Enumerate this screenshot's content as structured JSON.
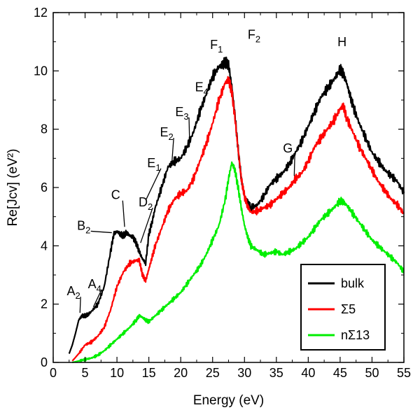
{
  "chart_data": {
    "type": "line",
    "xlabel": "Energy (eV)",
    "ylabel": "Re[Jcv] (eV²)",
    "xlim": [
      0,
      55
    ],
    "ylim": [
      0,
      12
    ],
    "x_ticks": [
      "0",
      "5",
      "10",
      "15",
      "20",
      "25",
      "30",
      "35",
      "40",
      "45",
      "50",
      "55"
    ],
    "y_ticks": [
      "0",
      "2",
      "4",
      "6",
      "8",
      "10",
      "12"
    ],
    "grid": false,
    "legend_position": "bottom-right",
    "series": [
      {
        "name": "bulk",
        "color": "#000000",
        "x": [
          2.5,
          3,
          3.5,
          4,
          4.5,
          5,
          5.5,
          6,
          7,
          8,
          9,
          9.5,
          10,
          10.5,
          11,
          11.5,
          12,
          12.5,
          13,
          13.5,
          14,
          14.5,
          15,
          15.5,
          16,
          17,
          18,
          19,
          20,
          21,
          22,
          23,
          24,
          25,
          26,
          26.5,
          27,
          27.5,
          28,
          28.5,
          29,
          29.5,
          30,
          30.5,
          31,
          32,
          33,
          34,
          35,
          36,
          37,
          38,
          39,
          40,
          41,
          42,
          43,
          44,
          45,
          45.5,
          46,
          46.5,
          47,
          48,
          49,
          50,
          51,
          52,
          53,
          54,
          55
        ],
        "y": [
          0.3,
          0.6,
          1.0,
          1.45,
          1.6,
          1.6,
          1.65,
          1.75,
          2.0,
          2.6,
          3.8,
          4.4,
          4.5,
          4.4,
          4.35,
          4.45,
          4.35,
          4.3,
          4.1,
          3.8,
          3.55,
          3.4,
          4.4,
          4.8,
          5.3,
          6.0,
          6.7,
          6.9,
          7.0,
          7.4,
          7.9,
          8.6,
          9.2,
          9.8,
          10.15,
          10.2,
          10.3,
          10.2,
          9.5,
          8.5,
          7.3,
          6.3,
          5.7,
          5.5,
          5.3,
          5.4,
          5.7,
          6.1,
          6.3,
          6.5,
          6.8,
          7.2,
          7.6,
          8.1,
          8.6,
          9.1,
          9.4,
          9.7,
          10.05,
          9.9,
          9.6,
          9.2,
          8.8,
          8.2,
          7.7,
          7.2,
          6.9,
          6.6,
          6.4,
          6.2,
          5.8
        ]
      },
      {
        "name": "Σ5",
        "color": "#ff0000",
        "x": [
          3,
          4,
          5,
          6,
          7,
          8,
          9,
          10,
          11,
          12,
          13,
          13.5,
          14,
          14.5,
          15,
          15.5,
          16,
          17,
          18,
          19,
          20,
          21,
          22,
          23,
          24,
          25,
          26,
          27,
          27.5,
          28,
          28.5,
          29,
          29.5,
          30,
          30.5,
          31,
          32,
          33,
          34,
          35,
          36,
          37,
          38,
          39,
          40,
          41,
          42,
          43,
          44,
          45,
          45.5,
          46,
          47,
          48,
          49,
          50,
          51,
          52,
          53,
          54,
          55
        ],
        "y": [
          0.05,
          0.3,
          0.6,
          0.7,
          0.9,
          1.2,
          1.8,
          2.6,
          3.1,
          3.4,
          3.5,
          3.5,
          3.0,
          2.8,
          3.2,
          3.6,
          4.0,
          4.6,
          5.2,
          5.6,
          5.8,
          5.9,
          6.3,
          6.9,
          7.5,
          8.2,
          9.0,
          9.6,
          9.7,
          9.3,
          8.4,
          7.3,
          6.3,
          5.7,
          5.35,
          5.15,
          5.2,
          5.3,
          5.4,
          5.6,
          5.8,
          6.0,
          6.3,
          6.5,
          6.9,
          7.4,
          7.7,
          8.0,
          8.3,
          8.7,
          8.8,
          8.4,
          7.9,
          7.4,
          7.0,
          6.6,
          6.2,
          5.9,
          5.6,
          5.4,
          5.1
        ]
      },
      {
        "name": "nΣ13",
        "color": "#00ee00",
        "x": [
          3,
          4,
          5,
          6,
          7,
          8,
          9,
          10,
          11,
          12,
          13,
          13.5,
          14,
          14.5,
          15,
          16,
          17,
          18,
          19,
          20,
          21,
          22,
          23,
          24,
          25,
          26,
          27,
          27.5,
          28,
          28.5,
          29,
          29.5,
          30,
          30.5,
          31,
          32,
          33,
          34,
          35,
          36,
          37,
          38,
          39,
          40,
          41,
          42,
          43,
          44,
          45,
          45.5,
          46,
          47,
          48,
          49,
          50,
          51,
          52,
          53,
          54,
          55
        ],
        "y": [
          0,
          0.05,
          0.1,
          0.15,
          0.25,
          0.4,
          0.6,
          0.8,
          1.0,
          1.2,
          1.45,
          1.6,
          1.55,
          1.45,
          1.4,
          1.6,
          1.8,
          2.0,
          2.2,
          2.4,
          2.7,
          3.0,
          3.3,
          3.7,
          4.2,
          4.7,
          5.6,
          6.3,
          6.85,
          6.6,
          6.0,
          5.3,
          4.7,
          4.3,
          4.0,
          3.85,
          3.7,
          3.75,
          3.8,
          3.7,
          3.8,
          3.9,
          4.1,
          4.3,
          4.6,
          4.9,
          5.1,
          5.3,
          5.55,
          5.5,
          5.4,
          5.1,
          4.8,
          4.5,
          4.2,
          4.0,
          3.8,
          3.6,
          3.4,
          3.1
        ]
      }
    ],
    "annotations": [
      {
        "base": "A",
        "sub": "2",
        "label_x": 3.2,
        "label_y": 2.3,
        "point_x": 4.2,
        "point_y": 1.7
      },
      {
        "base": "A",
        "sub": "4",
        "label_x": 6.5,
        "label_y": 2.55,
        "point_x": 6.3,
        "point_y": 1.9
      },
      {
        "base": "B",
        "sub": "2",
        "label_x": 4.8,
        "label_y": 4.55,
        "point_x": 9.2,
        "point_y": 4.45
      },
      {
        "base": "C",
        "sub": "",
        "label_x": 9.8,
        "label_y": 5.6,
        "point_x": 11.2,
        "point_y": 4.65
      },
      {
        "base": "D",
        "sub": "2",
        "label_x": 14.5,
        "label_y": 5.35,
        "point_x": 13.7,
        "point_y": 4.1
      },
      {
        "base": "E",
        "sub": "1",
        "label_x": 15.8,
        "label_y": 6.7,
        "point_x": 14.6,
        "point_y": 5.6
      },
      {
        "base": "E",
        "sub": "2",
        "label_x": 17.8,
        "label_y": 7.75,
        "point_x": 18.6,
        "point_y": 6.8
      },
      {
        "base": "E",
        "sub": "3",
        "label_x": 20.2,
        "label_y": 8.45,
        "point_x": 21.4,
        "point_y": 7.5
      },
      {
        "base": "E",
        "sub": "4",
        "label_x": 23.3,
        "label_y": 9.3,
        "point_x": null,
        "point_y": null
      },
      {
        "base": "F",
        "sub": "1",
        "label_x": 25.6,
        "label_y": 10.75,
        "point_x": null,
        "point_y": null
      },
      {
        "base": "F",
        "sub": "2",
        "label_x": 31.5,
        "label_y": 11.1,
        "point_x": null,
        "point_y": null
      },
      {
        "base": "G",
        "sub": "",
        "label_x": 36.8,
        "label_y": 7.2,
        "point_x": 37.8,
        "point_y": 6.4
      },
      {
        "base": "H",
        "sub": "",
        "label_x": 45.3,
        "label_y": 10.85,
        "point_x": null,
        "point_y": null
      }
    ]
  }
}
